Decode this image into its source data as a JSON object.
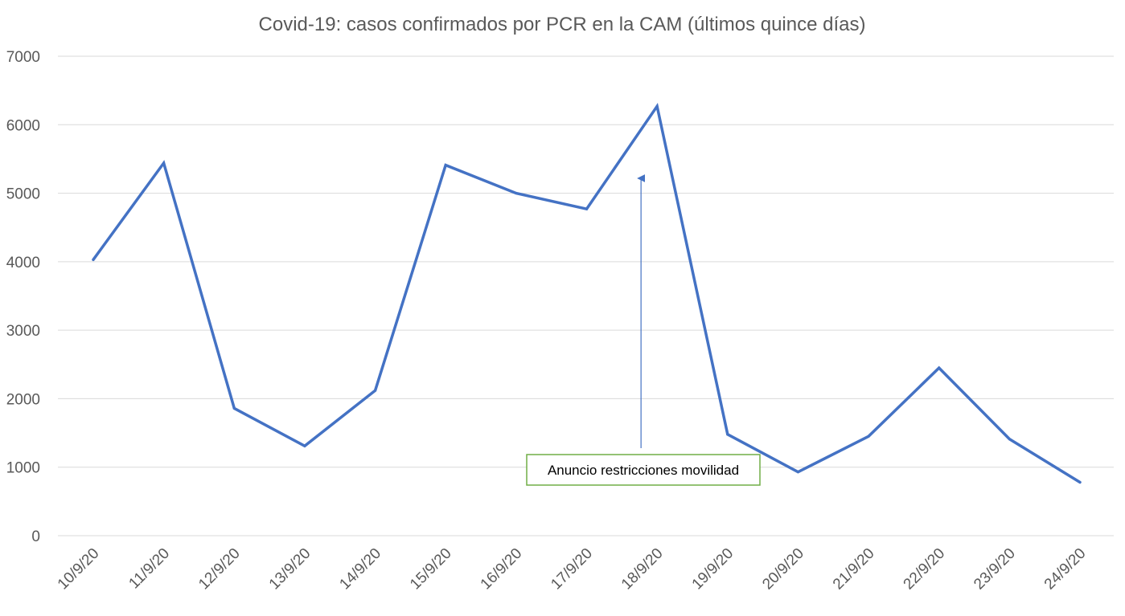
{
  "chart_data": {
    "type": "line",
    "title": "Covid-19: casos confirmados por PCR en la CAM (últimos quince días)",
    "xlabel": "",
    "ylabel": "",
    "categories": [
      "10/9/20",
      "11/9/20",
      "12/9/20",
      "13/9/20",
      "14/9/20",
      "15/9/20",
      "16/9/20",
      "17/9/20",
      "18/9/20",
      "19/9/20",
      "20/9/20",
      "21/9/20",
      "22/9/20",
      "23/9/20",
      "24/9/20"
    ],
    "series": [
      {
        "values": [
          4030,
          5440,
          1860,
          1310,
          2120,
          5410,
          5000,
          4770,
          6270,
          1480,
          930,
          1450,
          2450,
          1410,
          780
        ],
        "color": "#4472c4"
      }
    ],
    "ylim": [
      0,
      7000
    ],
    "yticks": [
      "0",
      "1000",
      "2000",
      "3000",
      "4000",
      "5000",
      "6000",
      "7000"
    ],
    "grid": true,
    "legend": "none",
    "annotation": {
      "text": "Anuncio restricciones movilidad",
      "arrow_to_category": "18/9/20",
      "border_color": "#70ad47",
      "arrow_color": "#4472c4"
    }
  }
}
